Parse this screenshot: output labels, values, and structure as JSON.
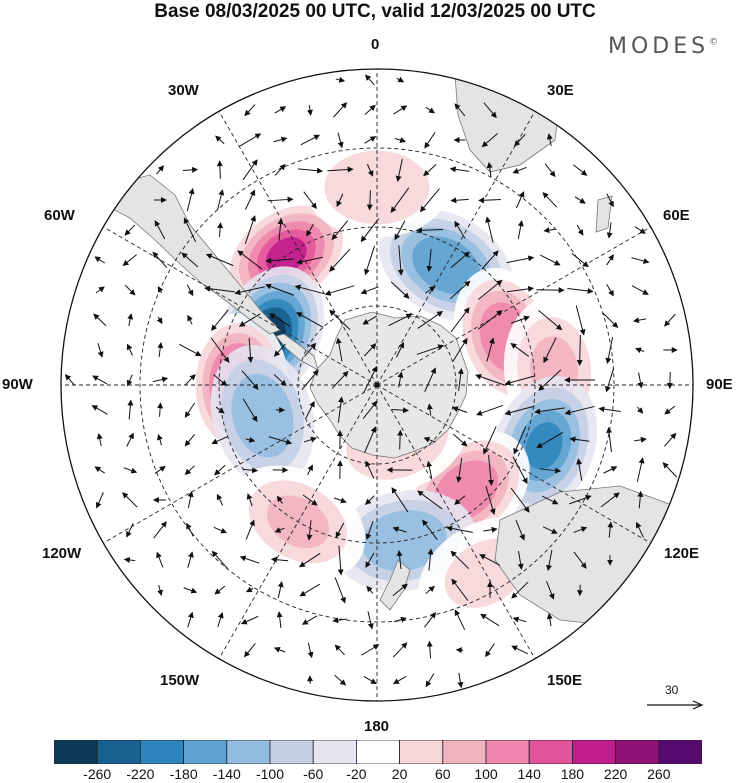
{
  "title": "Base 08/03/2025 00 UTC, valid 12/03/2025 00 UTC",
  "brand": {
    "name": "MODES",
    "mark": "©"
  },
  "lon_labels": {
    "top": "0",
    "top_right": "30E",
    "right_upper": "60E",
    "right": "90E",
    "right_lower": "120E",
    "bottom_right": "150E",
    "bottom": "180",
    "bottom_left": "150W",
    "left_lower": "120W",
    "left": "90W",
    "left_upper": "60W",
    "top_left": "30W"
  },
  "colorbar": {
    "ticks": [
      "-260",
      "-220",
      "-180",
      "-140",
      "-100",
      "-60",
      "-20",
      "20",
      "60",
      "100",
      "140",
      "180",
      "220",
      "260"
    ],
    "colors": [
      "#0e3a5a",
      "#17608f",
      "#2f86bd",
      "#5fa3d2",
      "#93bde0",
      "#c4cfe6",
      "#e6e5f1",
      "#ffffff",
      "#f7d6d9",
      "#f2b3c0",
      "#ee86ad",
      "#e2559c",
      "#c01c8a",
      "#8e1178",
      "#560c6e"
    ]
  },
  "reference_vector": {
    "label": "30"
  },
  "anomalies": [
    {
      "lon": -35,
      "lat": -50,
      "value": 200
    },
    {
      "lon": -65,
      "lat": -60,
      "value": -240
    },
    {
      "lon": -90,
      "lat": -55,
      "value": 190
    },
    {
      "lon": -105,
      "lat": -60,
      "value": -110
    },
    {
      "lon": 30,
      "lat": -55,
      "value": -150
    },
    {
      "lon": 70,
      "lat": -55,
      "value": 150
    },
    {
      "lon": 85,
      "lat": -45,
      "value": 90
    },
    {
      "lon": 110,
      "lat": -45,
      "value": -170
    },
    {
      "lon": 140,
      "lat": -55,
      "value": 150
    },
    {
      "lon": 170,
      "lat": -50,
      "value": -110
    },
    {
      "lon": -150,
      "lat": -50,
      "value": 90
    },
    {
      "lon": 150,
      "lat": -35,
      "value": 50
    },
    {
      "lon": 0,
      "lat": -40,
      "value": 60
    },
    {
      "lon": 160,
      "lat": -75,
      "value": 70
    }
  ]
}
